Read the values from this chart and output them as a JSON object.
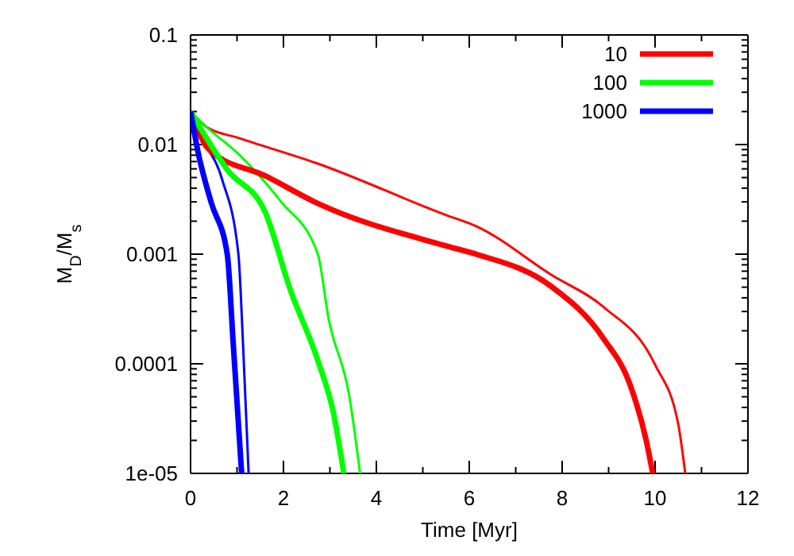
{
  "chart_data": {
    "type": "line",
    "xlabel": "Time [Myr]",
    "ylabel": "M$_{D}$/M$_{s}$",
    "log": "y",
    "legend": "top right",
    "grid": false,
    "line_style": "solid",
    "marker": "none",
    "xlim": [
      0,
      12
    ],
    "ylim": [
      1e-05,
      0.1
    ],
    "xticks": [
      0,
      {
        "value": 1,
        "label": null
      },
      2,
      {
        "value": 3,
        "label": null
      },
      4,
      {
        "value": 5,
        "label": null
      },
      6,
      {
        "value": 7,
        "label": null
      },
      8,
      {
        "value": 9,
        "label": null
      },
      10,
      {
        "value": 11,
        "label": null
      },
      12
    ],
    "yticks": [
      {
        "value": 1e-05,
        "label": "1e-05"
      },
      {
        "value": 2e-05,
        "label": null
      },
      {
        "value": 3e-05,
        "label": null
      },
      {
        "value": 4e-05,
        "label": null
      },
      {
        "value": 5e-05,
        "label": null
      },
      {
        "value": 6e-05,
        "label": null
      },
      {
        "value": 7e-05,
        "label": null
      },
      {
        "value": 8e-05,
        "label": null
      },
      {
        "value": 9e-05,
        "label": null
      },
      0.0001,
      {
        "value": 0.0002,
        "label": null
      },
      {
        "value": 0.0003,
        "label": null
      },
      {
        "value": 0.0004,
        "label": null
      },
      {
        "value": 0.0005,
        "label": null
      },
      {
        "value": 0.0006,
        "label": null
      },
      {
        "value": 0.0007,
        "label": null
      },
      {
        "value": 0.0008,
        "label": null
      },
      {
        "value": 0.0009,
        "label": null
      },
      0.001,
      {
        "value": 0.002,
        "label": null
      },
      {
        "value": 0.003,
        "label": null
      },
      {
        "value": 0.004,
        "label": null
      },
      {
        "value": 0.005,
        "label": null
      },
      {
        "value": 0.006,
        "label": null
      },
      {
        "value": 0.007,
        "label": null
      },
      {
        "value": 0.008,
        "label": null
      },
      {
        "value": 0.009,
        "label": null
      },
      0.01,
      {
        "value": 0.02,
        "label": null
      },
      {
        "value": 0.03,
        "label": null
      },
      {
        "value": 0.04,
        "label": null
      },
      {
        "value": 0.05,
        "label": null
      },
      {
        "value": 0.06,
        "label": null
      },
      {
        "value": 0.07,
        "label": null
      },
      {
        "value": 0.08,
        "label": null
      },
      {
        "value": 0.09,
        "label": null
      },
      0.1
    ],
    "series": [
      {
        "color": "#ff0000",
        "x": [
          0,
          0.34,
          1.03,
          2.74,
          5.47,
          6.15,
          7.76,
          8.89,
          10.0,
          10.5,
          10.65
        ],
        "values": [
          0.02,
          0.0145,
          0.0115,
          0.0067,
          0.0023,
          0.0018,
          0.00065,
          0.00033,
          9.8e-05,
          2.8e-05,
          1e-05
        ]
      },
      {
        "color": "#00ff00",
        "x": [
          0,
          0.34,
          1.03,
          1.95,
          2.74,
          2.97,
          3.42,
          3.65
        ],
        "values": [
          0.02,
          0.0145,
          0.0082,
          0.003,
          0.001,
          0.00026,
          5e-05,
          1e-05
        ]
      },
      {
        "color": "#0000ff",
        "x": [
          0,
          0.24,
          0.68,
          1.03,
          1.13,
          1.25
        ],
        "values": [
          0.02,
          0.0115,
          0.0048,
          0.001,
          0.00015,
          1e-05
        ]
      },
      {
        "name": "10",
        "color": "#ff0000",
        "x": [
          0,
          0.34,
          0.44,
          1.6,
          2.74,
          5.47,
          6.15,
          7.76,
          8.89,
          9.47,
          9.81,
          9.95
        ],
        "values": [
          0.02,
          0.0096,
          0.0087,
          0.0052,
          0.0029,
          0.0012,
          0.001,
          0.00051,
          0.00017,
          6.3e-05,
          2e-05,
          1e-05
        ]
      },
      {
        "name": "100",
        "color": "#00ff00",
        "x": [
          0,
          0.34,
          0.79,
          1.6,
          2.15,
          2.74,
          3.08,
          3.3
        ],
        "values": [
          0.02,
          0.0115,
          0.0059,
          0.00245,
          0.00047,
          0.000107,
          3.5e-05,
          1e-05
        ]
      },
      {
        "name": "1000",
        "color": "#0000ff",
        "x": [
          0,
          0.17,
          0.44,
          0.79,
          0.92,
          1.1
        ],
        "values": [
          0.02,
          0.0082,
          0.003,
          0.001,
          0.00015,
          1e-05
        ]
      }
    ]
  }
}
